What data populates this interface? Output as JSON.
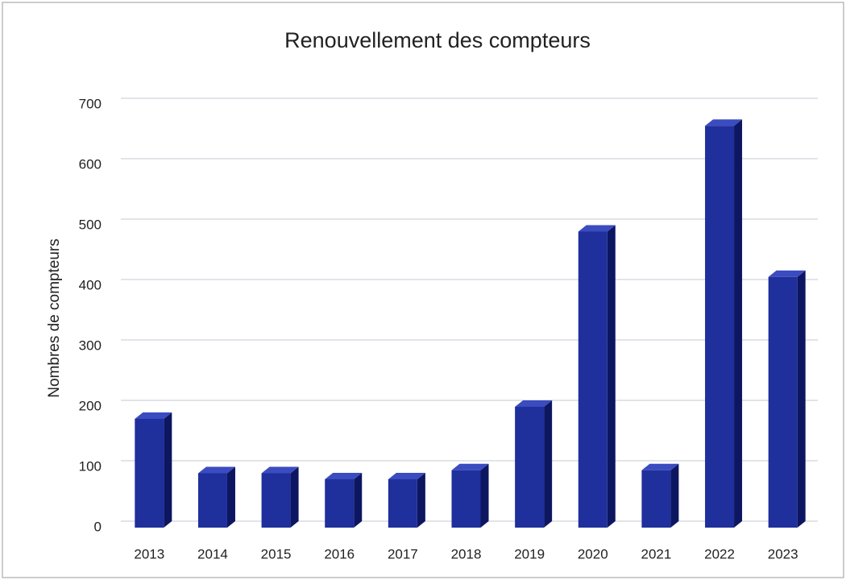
{
  "chart_data": {
    "type": "bar3d",
    "title": "Renouvellement des compteurs",
    "y_label": "Nombres de compteurs",
    "categories": [
      "2013",
      "2014",
      "2015",
      "2016",
      "2017",
      "2018",
      "2019",
      "2020",
      "2021",
      "2022",
      "2023"
    ],
    "values": [
      180,
      90,
      90,
      80,
      80,
      95,
      200,
      490,
      95,
      665,
      415
    ],
    "color": "#1f2f9c",
    "ylim": [
      0,
      700
    ],
    "yticks": [
      0,
      100,
      200,
      300,
      400,
      500,
      600,
      700
    ],
    "grid": true
  }
}
